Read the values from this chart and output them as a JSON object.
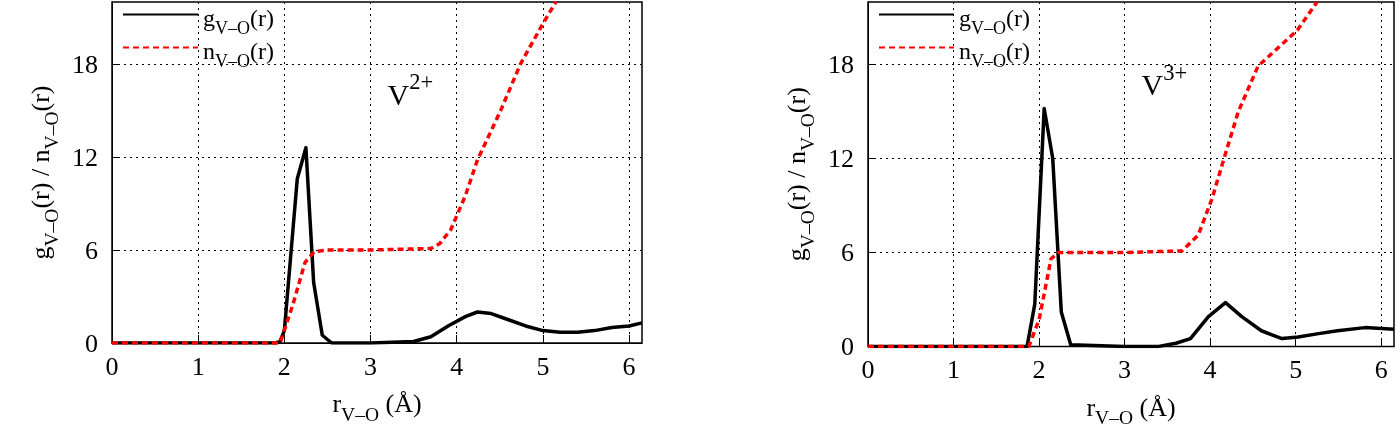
{
  "chart_data": [
    {
      "type": "line",
      "xlabel": "r$_{V–O}$ (Å)",
      "ylabel": "g$_{V–O}$(r) / n$_{V–O}$(r)",
      "annotations": [
        "V$^{2+}$"
      ],
      "xlim": [
        0,
        6.15
      ],
      "ylim": [
        0,
        22
      ],
      "xticks": [
        0,
        1,
        2,
        3,
        4,
        5,
        6
      ],
      "yticks": [
        0,
        6,
        12,
        18
      ],
      "grid": true,
      "legend": "top left",
      "marker": "none",
      "series": [
        {
          "name": "g$_{V–O}$(r)",
          "color": "#000000",
          "line_style": "solid",
          "x": [
            0,
            1.9,
            1.95,
            2.0,
            2.15,
            2.25,
            2.34,
            2.44,
            2.55,
            3.0,
            3.5,
            3.7,
            3.9,
            4.1,
            4.24,
            4.4,
            4.6,
            4.8,
            5.0,
            5.2,
            5.4,
            5.6,
            5.8,
            6.0,
            6.15
          ],
          "values": [
            0,
            0,
            0.1,
            0.8,
            10.6,
            12.6,
            3.9,
            0.5,
            0,
            0,
            0.1,
            0.4,
            1.1,
            1.7,
            2.0,
            1.9,
            1.5,
            1.1,
            0.8,
            0.7,
            0.7,
            0.8,
            1.0,
            1.1,
            1.3
          ]
        },
        {
          "name": "n$_{V–O}$(r)",
          "color": "#ff0000",
          "line_style": "dashed",
          "x": [
            0,
            1.95,
            2.1,
            2.24,
            2.35,
            2.5,
            3.0,
            3.7,
            3.8,
            3.93,
            4.1,
            4.24,
            4.51,
            4.74,
            5.0,
            5.15
          ],
          "values": [
            0,
            0,
            2.5,
            5.2,
            5.9,
            6.0,
            6.0,
            6.1,
            6.4,
            7.3,
            9.5,
            11.8,
            15,
            18,
            20.6,
            22
          ]
        }
      ]
    },
    {
      "type": "line",
      "xlabel": "r$_{V–O}$ (Å)",
      "ylabel": "g$_{V–O}$(r) / n$_{V–O}$(r)",
      "annotations": [
        "V$^{3+}$"
      ],
      "xlim": [
        0,
        6.15
      ],
      "ylim": [
        0,
        22
      ],
      "xticks": [
        0,
        1,
        2,
        3,
        4,
        5,
        6
      ],
      "yticks": [
        0,
        6,
        12,
        18
      ],
      "grid": true,
      "legend": "top left",
      "marker": "none",
      "series": [
        {
          "name": "g$_{V–O}$(r)",
          "color": "#000000",
          "line_style": "solid",
          "x": [
            0,
            1.86,
            1.95,
            2.06,
            2.16,
            2.26,
            2.37,
            3.0,
            3.4,
            3.6,
            3.77,
            3.98,
            4.18,
            4.37,
            4.6,
            4.84,
            5.03,
            5.25,
            5.49,
            5.81,
            6.15
          ],
          "values": [
            0,
            0,
            2.7,
            15.2,
            12,
            2.2,
            0.1,
            0,
            0,
            0.2,
            0.5,
            1.9,
            2.8,
            1.9,
            1.0,
            0.5,
            0.6,
            0.8,
            1.0,
            1.2,
            1.1
          ]
        },
        {
          "name": "n$_{V–O}$(r)",
          "color": "#ff0000",
          "line_style": "dashed",
          "x": [
            0,
            1.88,
            2.0,
            2.14,
            2.23,
            3.0,
            3.67,
            3.86,
            4.02,
            4.19,
            4.33,
            4.56,
            5.02,
            5.25
          ],
          "values": [
            0,
            0,
            1.7,
            5.6,
            6.0,
            6.0,
            6.1,
            7.1,
            9.4,
            12.5,
            15,
            17.9,
            20.2,
            22
          ]
        }
      ]
    }
  ]
}
